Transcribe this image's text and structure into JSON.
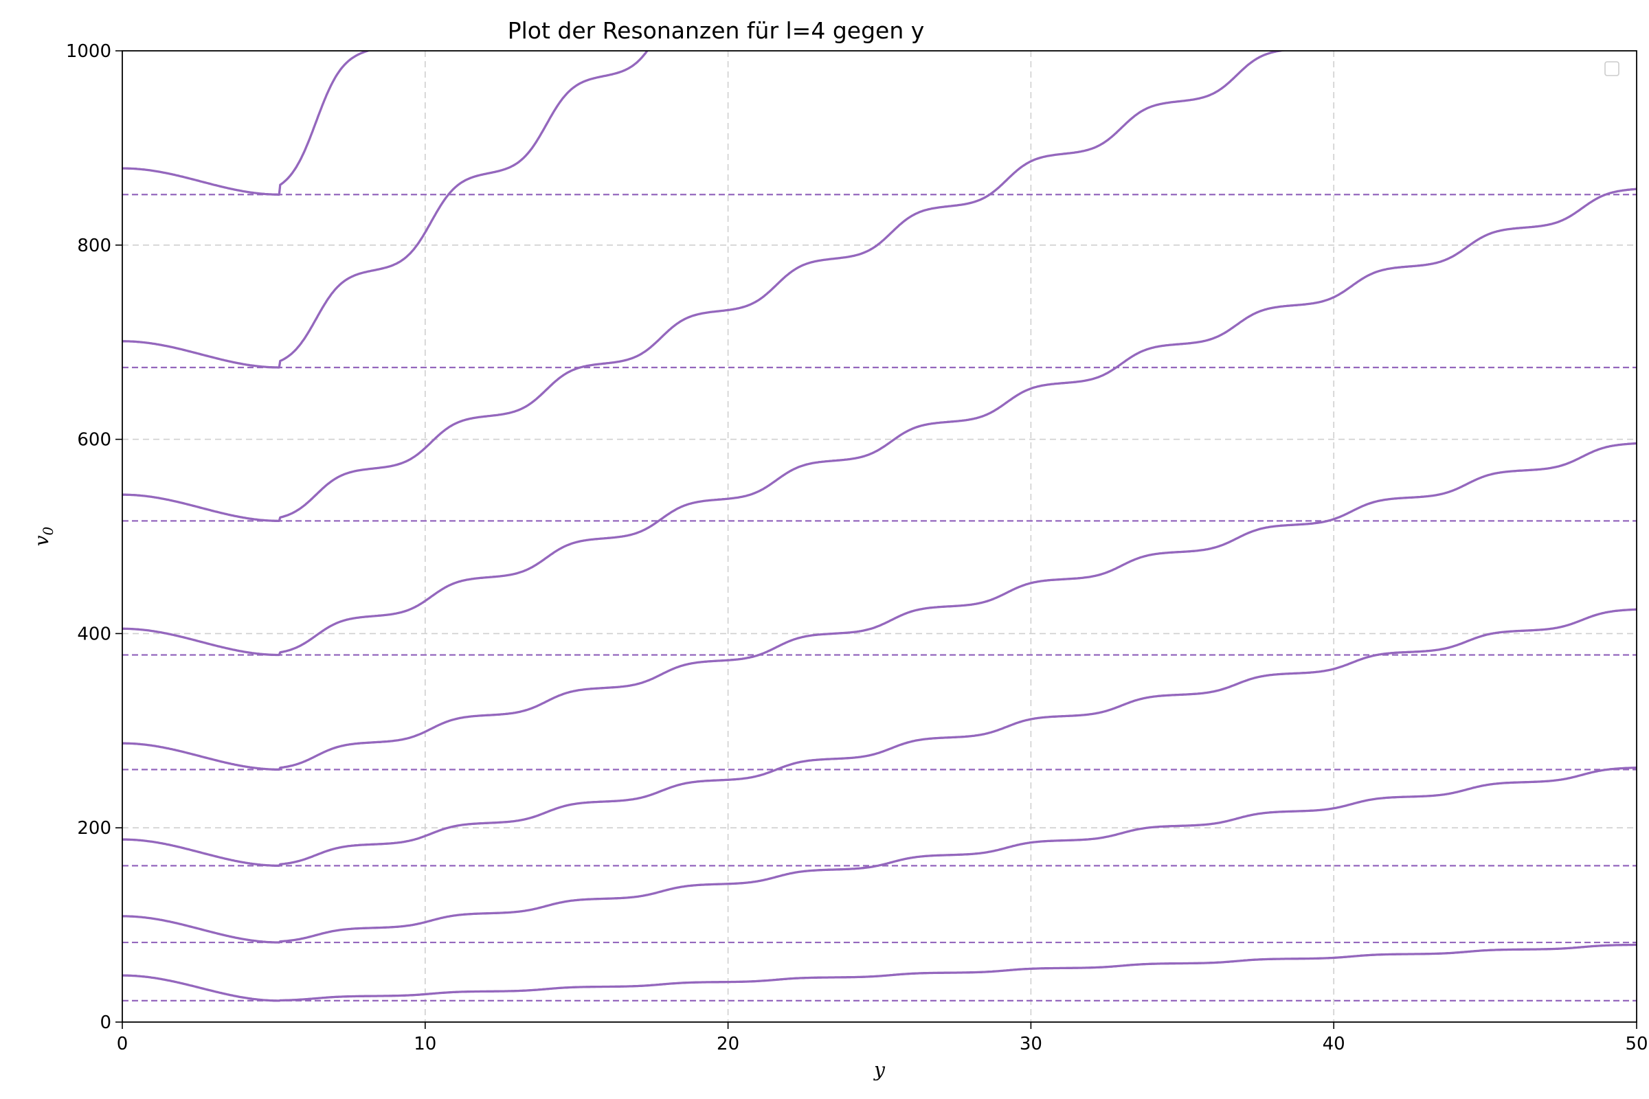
{
  "chart_data": {
    "type": "line",
    "title": "Plot der Resonanzen für l=4 gegen y",
    "xlabel": "y",
    "ylabel_base": "v",
    "ylabel_sub": "0",
    "xlim": [
      0,
      50
    ],
    "ylim": [
      0,
      1000
    ],
    "xticks": [
      0,
      10,
      20,
      30,
      40,
      50
    ],
    "yticks": [
      0,
      200,
      400,
      600,
      800,
      1000
    ],
    "grid": true,
    "legend": "top-right (empty)",
    "color": "#9467bd",
    "series": [
      {
        "start": 48,
        "min": 22,
        "rise": 4.8
      },
      {
        "start": 109,
        "min": 82,
        "rise": 15
      },
      {
        "start": 188,
        "min": 161,
        "rise": 22
      },
      {
        "start": 287,
        "min": 260,
        "rise": 28
      },
      {
        "start": 405,
        "min": 378,
        "rise": 40
      },
      {
        "start": 543,
        "min": 516,
        "rise": 54
      },
      {
        "start": 701,
        "min": 674,
        "rise": 100
      },
      {
        "start": 879,
        "min": 852,
        "rise": 150
      }
    ],
    "asymptotes": [
      22,
      82,
      161,
      260,
      378,
      516,
      674,
      852
    ]
  }
}
